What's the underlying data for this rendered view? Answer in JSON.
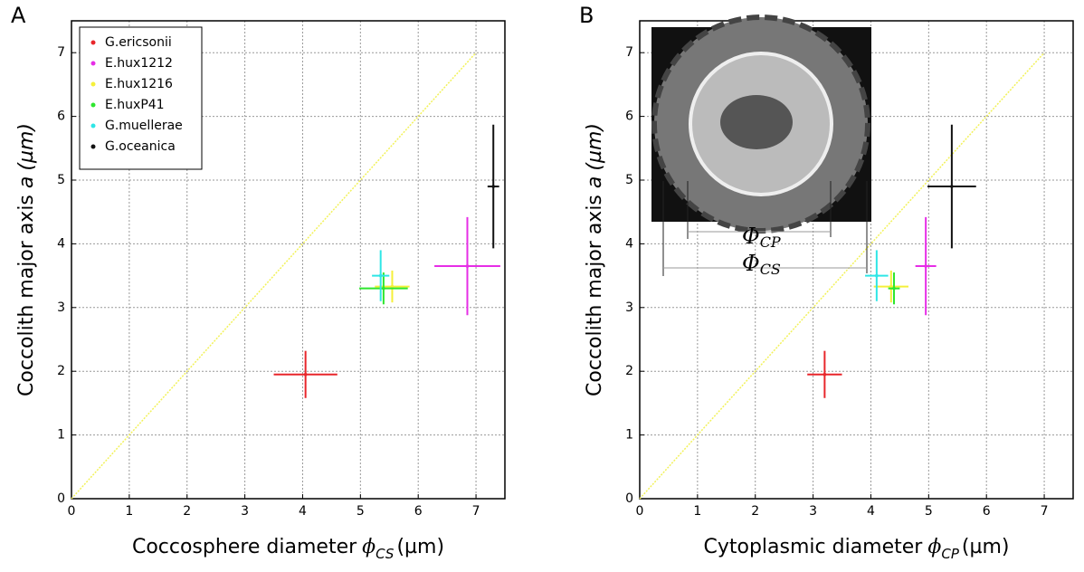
{
  "chart_data": [
    {
      "type": "errorbar-scatter",
      "panel_label": "A",
      "xlabel": "Coccosphere diameter",
      "xlabel_symbol": "ϕ",
      "xlabel_sub": "CS",
      "xlabel_unit": "(µm)",
      "ylabel": "Coccolith major axis",
      "ylabel_symbol": "a",
      "ylabel_unit": "(µm)",
      "xlim": [
        0,
        7.5
      ],
      "ylim": [
        0,
        7.5
      ],
      "xticks": [
        0,
        1,
        2,
        3,
        4,
        5,
        6,
        7
      ],
      "yticks": [
        0,
        1,
        2,
        3,
        4,
        5,
        6,
        7
      ],
      "grid": true,
      "legend": "top-left",
      "identity_line": {
        "x": [
          0,
          7
        ],
        "y": [
          0,
          7
        ],
        "color": "#f2f25a"
      },
      "series": [
        {
          "name": "G.ericsonii",
          "color": "#e8262b",
          "x": [
            4.05
          ],
          "values": [
            1.95
          ],
          "xerr": [
            0.55
          ],
          "yerr": [
            0.37
          ]
        },
        {
          "name": "E.hux1212",
          "color": "#e62ee6",
          "x": [
            6.85
          ],
          "values": [
            3.65
          ],
          "xerr": [
            0.57
          ],
          "yerr": [
            0.77
          ]
        },
        {
          "name": "E.hux1216",
          "color": "#f5f03a",
          "x": [
            5.55
          ],
          "values": [
            3.33
          ],
          "xerr": [
            0.3
          ],
          "yerr": [
            0.25
          ]
        },
        {
          "name": "E.huxP41",
          "color": "#2ee62e",
          "x": [
            5.4
          ],
          "values": [
            3.3
          ],
          "xerr": [
            0.42
          ],
          "yerr": [
            0.25
          ]
        },
        {
          "name": "G.muellerae",
          "color": "#2ee6e6",
          "x": [
            5.35
          ],
          "values": [
            3.5
          ],
          "xerr": [
            0.15
          ],
          "yerr": [
            0.4
          ]
        },
        {
          "name": "G.oceanica",
          "color": "#111111",
          "x": [
            7.3
          ],
          "values": [
            4.9
          ],
          "xerr": [
            0.1
          ],
          "yerr": [
            0.97
          ]
        }
      ]
    },
    {
      "type": "errorbar-scatter",
      "panel_label": "B",
      "xlabel": "Cytoplasmic diameter",
      "xlabel_symbol": "ϕ",
      "xlabel_sub": "CP",
      "xlabel_unit": "(µm)",
      "ylabel": "Coccolith major axis",
      "ylabel_symbol": "a",
      "ylabel_unit": "(µm)",
      "xlim": [
        0,
        7.5
      ],
      "ylim": [
        0,
        7.5
      ],
      "xticks": [
        0,
        1,
        2,
        3,
        4,
        5,
        6,
        7
      ],
      "yticks": [
        0,
        1,
        2,
        3,
        4,
        5,
        6,
        7
      ],
      "grid": true,
      "identity_line": {
        "x": [
          0,
          7
        ],
        "y": [
          0,
          7
        ],
        "color": "#f2f25a"
      },
      "inset_labels": [
        {
          "symbol": "Φ",
          "sub": "CP"
        },
        {
          "symbol": "Φ",
          "sub": "CS"
        }
      ],
      "series": [
        {
          "color": "#e8262b",
          "x": [
            3.2
          ],
          "values": [
            1.95
          ],
          "xerr": [
            0.3
          ],
          "yerr": [
            0.37
          ]
        },
        {
          "color": "#e62ee6",
          "x": [
            4.95
          ],
          "values": [
            3.65
          ],
          "xerr": [
            0.18
          ],
          "yerr": [
            0.77
          ]
        },
        {
          "color": "#f5f03a",
          "x": [
            4.35
          ],
          "values": [
            3.33
          ],
          "xerr": [
            0.3
          ],
          "yerr": [
            0.25
          ]
        },
        {
          "color": "#2ee62e",
          "x": [
            4.4
          ],
          "values": [
            3.3
          ],
          "xerr": [
            0.1
          ],
          "yerr": [
            0.25
          ]
        },
        {
          "color": "#2ee6e6",
          "x": [
            4.1
          ],
          "values": [
            3.5
          ],
          "xerr": [
            0.2
          ],
          "yerr": [
            0.4
          ]
        },
        {
          "color": "#111111",
          "x": [
            5.4
          ],
          "values": [
            4.9
          ],
          "xerr": [
            0.42
          ],
          "yerr": [
            0.97
          ]
        }
      ]
    }
  ]
}
